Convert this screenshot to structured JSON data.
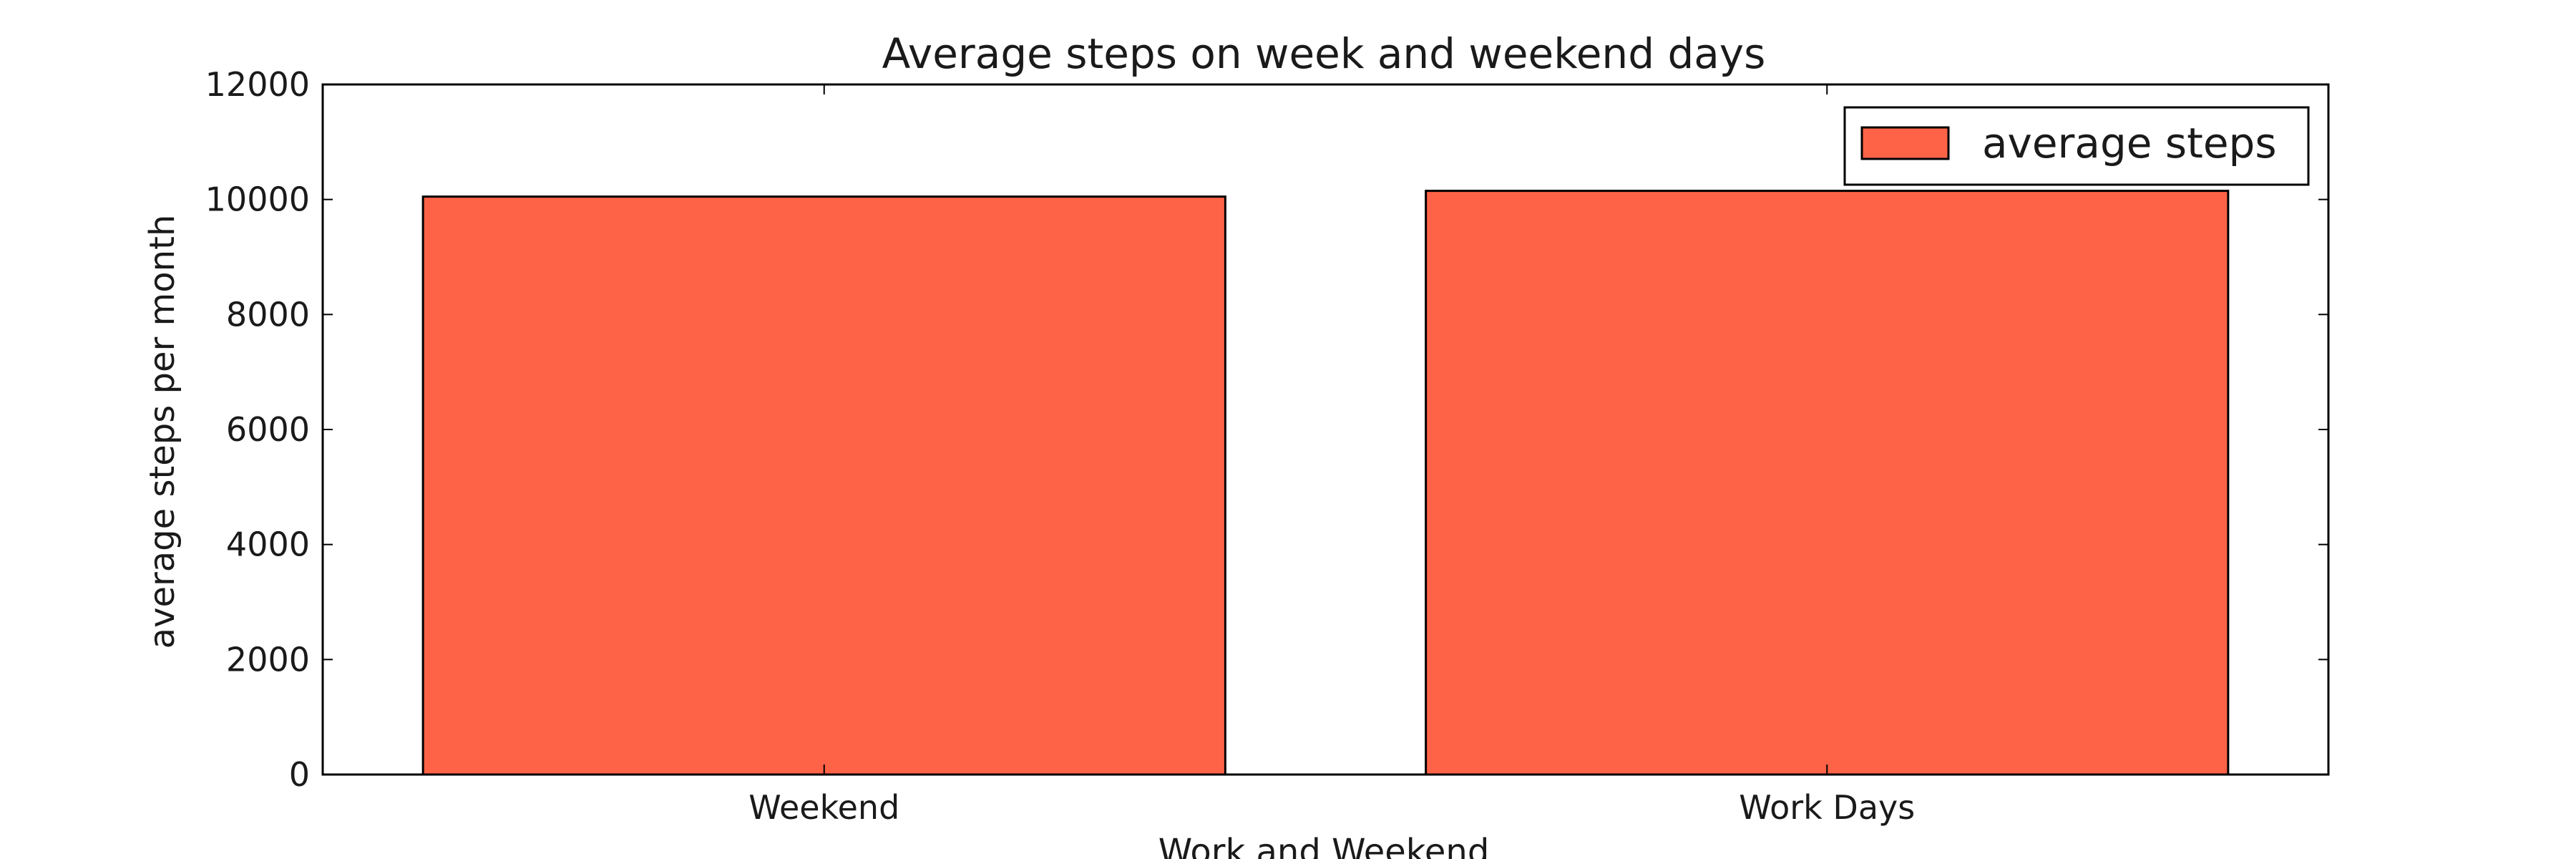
{
  "chart_data": {
    "type": "bar",
    "title": "Average steps on week and weekend days",
    "xlabel": "Work and Weekend",
    "ylabel": "average steps per month",
    "categories": [
      "Weekend",
      "Work Days"
    ],
    "series": [
      {
        "name": "average steps",
        "values": [
          10050,
          10150
        ],
        "color": "#ff6347"
      }
    ],
    "ylim": [
      0,
      12000
    ],
    "yticks": [
      "0",
      "2000",
      "4000",
      "6000",
      "8000",
      "10000",
      "12000"
    ],
    "grid": false,
    "legend_position": "top-right"
  }
}
